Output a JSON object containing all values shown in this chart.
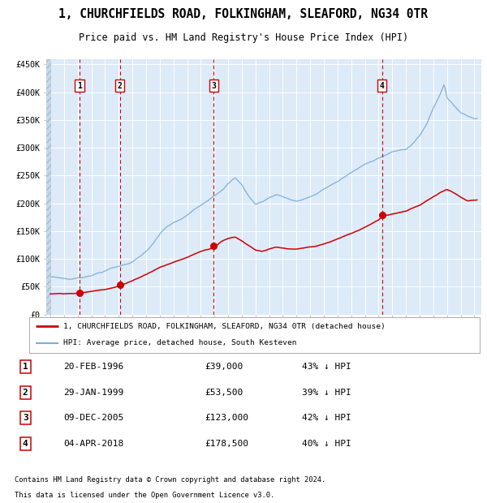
{
  "title": "1, CHURCHFIELDS ROAD, FOLKINGHAM, SLEAFORD, NG34 0TR",
  "subtitle": "Price paid vs. HM Land Registry's House Price Index (HPI)",
  "ylim": [
    0,
    460000
  ],
  "yticks": [
    0,
    50000,
    100000,
    150000,
    200000,
    250000,
    300000,
    350000,
    400000,
    450000
  ],
  "ytick_labels": [
    "£0",
    "£50K",
    "£100K",
    "£150K",
    "£200K",
    "£250K",
    "£300K",
    "£350K",
    "£400K",
    "£450K"
  ],
  "hpi_color": "#7aaed6",
  "price_color": "#cc0000",
  "dot_color": "#cc0000",
  "bg_chart": "#ddeaf7",
  "grid_color": "#ffffff",
  "vline_color": "#cc0000",
  "transactions": [
    {
      "label": "1",
      "date_str": "20-FEB-1996",
      "year": 1996.13,
      "price": 39000,
      "pct": "43% ↓ HPI"
    },
    {
      "label": "2",
      "date_str": "29-JAN-1999",
      "year": 1999.08,
      "price": 53500,
      "pct": "39% ↓ HPI"
    },
    {
      "label": "3",
      "date_str": "09-DEC-2005",
      "year": 2005.94,
      "price": 123000,
      "pct": "42% ↓ HPI"
    },
    {
      "label": "4",
      "date_str": "04-APR-2018",
      "year": 2018.25,
      "price": 178500,
      "pct": "40% ↓ HPI"
    }
  ],
  "footer_line1": "Contains HM Land Registry data © Crown copyright and database right 2024.",
  "footer_line2": "This data is licensed under the Open Government Licence v3.0.",
  "legend_property": "1, CHURCHFIELDS ROAD, FOLKINGHAM, SLEAFORD, NG34 0TR (detached house)",
  "legend_hpi": "HPI: Average price, detached house, South Kesteven",
  "xlim_left": 1993.7,
  "xlim_right": 2025.5,
  "hpi_anchors": {
    "1994.0": 68000,
    "1994.5": 67000,
    "1995.0": 65000,
    "1995.5": 64000,
    "1996.0": 66000,
    "1996.5": 68000,
    "1997.0": 72000,
    "1997.5": 76000,
    "1998.0": 80000,
    "1998.5": 85000,
    "1999.0": 88000,
    "1999.5": 92000,
    "2000.0": 97000,
    "2000.5": 105000,
    "2001.0": 115000,
    "2001.5": 128000,
    "2002.0": 145000,
    "2002.5": 158000,
    "2003.0": 165000,
    "2003.5": 170000,
    "2004.0": 178000,
    "2004.5": 188000,
    "2005.0": 195000,
    "2005.5": 205000,
    "2006.0": 215000,
    "2006.5": 225000,
    "2007.0": 238000,
    "2007.5": 248000,
    "2008.0": 235000,
    "2008.5": 215000,
    "2009.0": 200000,
    "2009.5": 205000,
    "2010.0": 212000,
    "2010.5": 218000,
    "2011.0": 215000,
    "2011.5": 210000,
    "2012.0": 207000,
    "2012.5": 210000,
    "2013.0": 215000,
    "2013.5": 220000,
    "2014.0": 228000,
    "2014.5": 235000,
    "2015.0": 242000,
    "2015.5": 250000,
    "2016.0": 258000,
    "2016.5": 265000,
    "2017.0": 272000,
    "2017.5": 278000,
    "2018.0": 285000,
    "2018.5": 290000,
    "2019.0": 295000,
    "2019.5": 298000,
    "2020.0": 300000,
    "2020.5": 310000,
    "2021.0": 325000,
    "2021.5": 345000,
    "2022.0": 375000,
    "2022.5": 400000,
    "2022.8": 420000,
    "2023.0": 395000,
    "2023.5": 380000,
    "2024.0": 368000,
    "2024.5": 362000,
    "2025.0": 358000
  },
  "prop_anchors": {
    "1994.0": 37000,
    "1995.0": 38000,
    "1996.13": 39000,
    "1997.0": 42000,
    "1998.0": 46000,
    "1999.08": 53500,
    "2000.0": 62000,
    "2001.0": 74000,
    "2002.0": 87000,
    "2003.0": 96000,
    "2004.0": 105000,
    "2005.0": 116000,
    "2005.94": 123000,
    "2006.5": 135000,
    "2007.0": 140000,
    "2007.5": 143000,
    "2008.0": 136000,
    "2008.5": 128000,
    "2009.0": 120000,
    "2009.5": 118000,
    "2010.0": 122000,
    "2010.5": 125000,
    "2011.0": 123000,
    "2011.5": 121000,
    "2012.0": 120000,
    "2012.5": 122000,
    "2013.0": 124000,
    "2013.5": 126000,
    "2014.0": 129000,
    "2014.5": 133000,
    "2015.0": 138000,
    "2015.5": 143000,
    "2016.0": 148000,
    "2016.5": 153000,
    "2017.0": 159000,
    "2017.5": 165000,
    "2018.0": 172000,
    "2018.25": 178500,
    "2019.0": 183000,
    "2019.5": 186000,
    "2020.0": 189000,
    "2020.5": 195000,
    "2021.0": 200000,
    "2021.5": 208000,
    "2022.0": 215000,
    "2022.5": 222000,
    "2023.0": 228000,
    "2023.3": 225000,
    "2023.8": 218000,
    "2024.0": 215000,
    "2024.5": 208000,
    "2025.0": 210000
  }
}
